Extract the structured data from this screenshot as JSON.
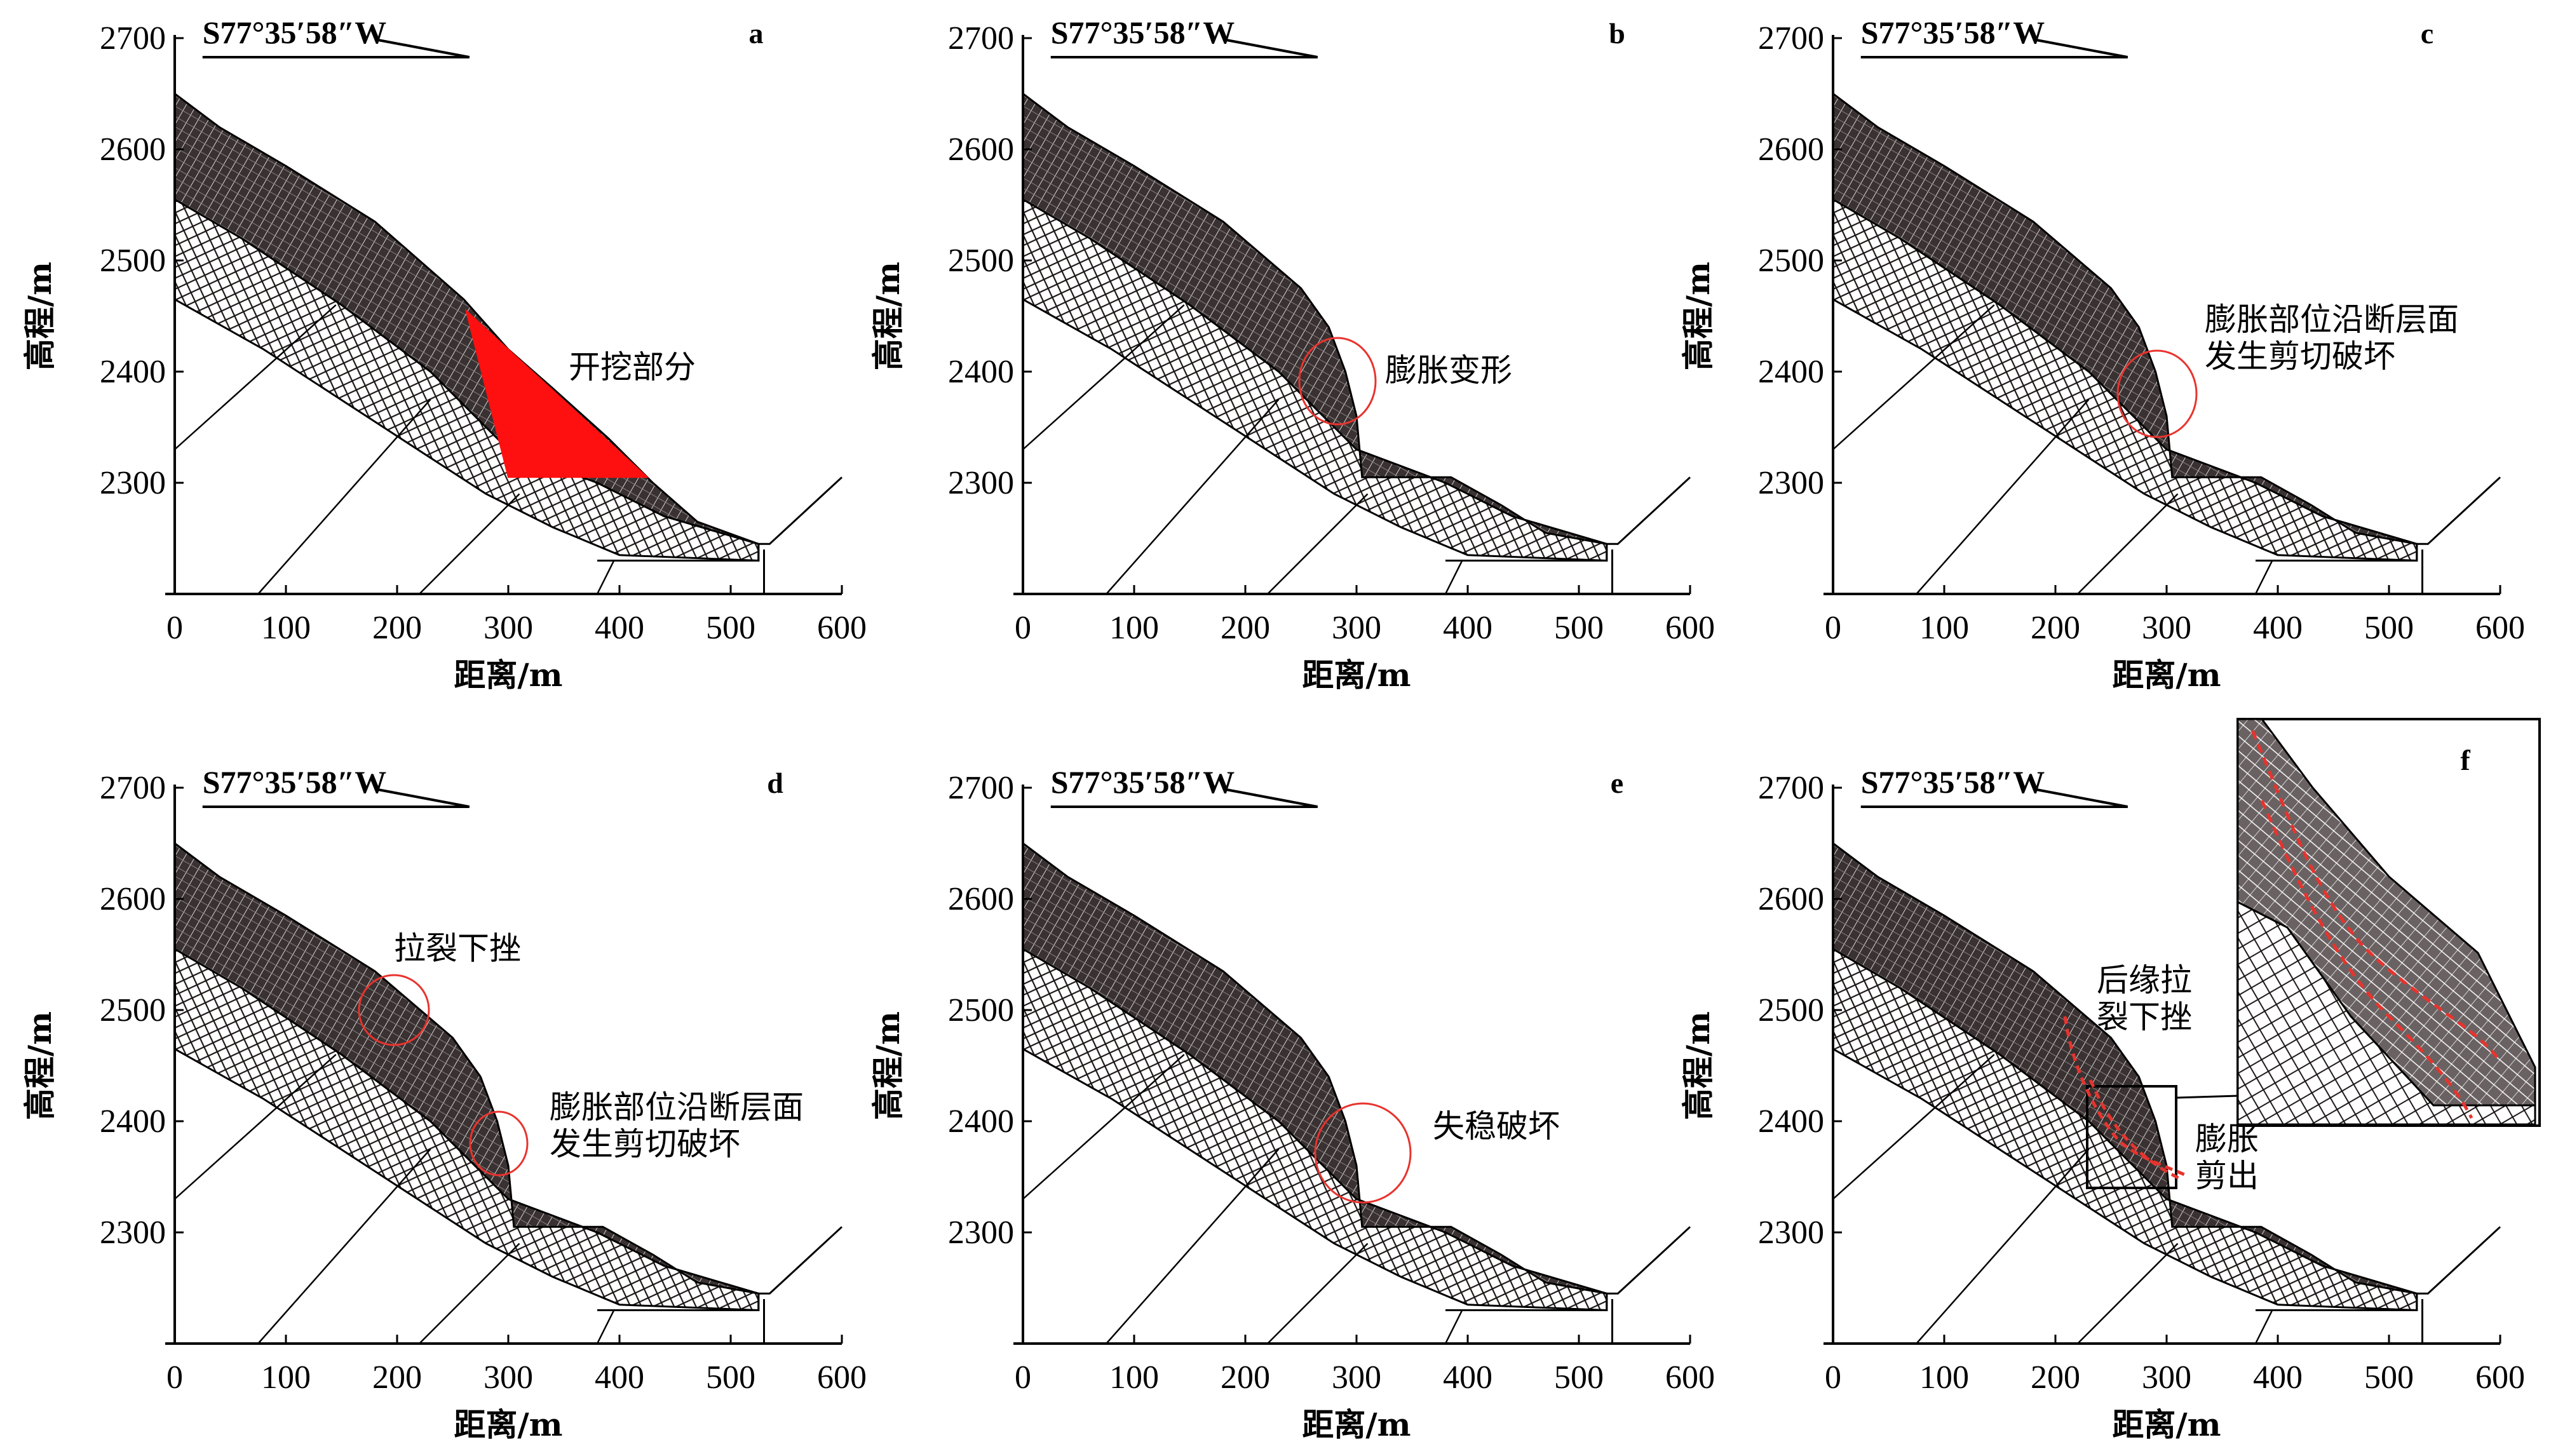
{
  "figure": {
    "yticks": [
      "2700",
      "2600",
      "2500",
      "2400",
      "2300"
    ],
    "xticks": [
      "0",
      "100",
      "200",
      "300",
      "400",
      "500",
      "600"
    ],
    "ylabel": "高程/m",
    "xlabel": "距离/m",
    "bearing": "S77°35′58″W",
    "colors": {
      "rock": "#3a3232",
      "rock_light": "#cdc6c6",
      "outline": "#000000",
      "excavation": "#ff1010",
      "marker": "#e8332e"
    },
    "panels": [
      {
        "id": "a",
        "label": "a",
        "state": "excavation",
        "annotations": [
          {
            "lines": [
              "开挖部分"
            ]
          }
        ]
      },
      {
        "id": "b",
        "label": "b",
        "state": "cut",
        "annotations": [
          {
            "lines": [
              "膨胀变形"
            ]
          }
        ]
      },
      {
        "id": "c",
        "label": "c",
        "state": "cut",
        "annotations": [
          {
            "lines": [
              "膨胀部位沿断层面",
              "发生剪切破坏"
            ]
          }
        ]
      },
      {
        "id": "d",
        "label": "d",
        "state": "cut",
        "annotations": [
          {
            "lines": [
              "拉裂下挫"
            ]
          },
          {
            "lines": [
              "膨胀部位沿断层面",
              "发生剪切破坏"
            ]
          }
        ]
      },
      {
        "id": "e",
        "label": "e",
        "state": "cut",
        "annotations": [
          {
            "lines": [
              "失稳破坏"
            ]
          }
        ]
      },
      {
        "id": "f",
        "label": "f",
        "state": "cut",
        "annotations": [
          {
            "lines": [
              "后缘拉",
              "裂下挫"
            ]
          },
          {
            "lines": [
              "膨胀",
              "剪出"
            ]
          }
        ]
      }
    ]
  }
}
